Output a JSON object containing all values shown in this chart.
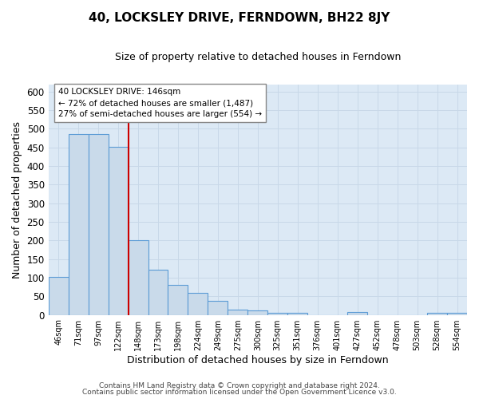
{
  "title": "40, LOCKSLEY DRIVE, FERNDOWN, BH22 8JY",
  "subtitle": "Size of property relative to detached houses in Ferndown",
  "xlabel": "Distribution of detached houses by size in Ferndown",
  "ylabel": "Number of detached properties",
  "footer_line1": "Contains HM Land Registry data © Crown copyright and database right 2024.",
  "footer_line2": "Contains public sector information licensed under the Open Government Licence v3.0.",
  "categories": [
    "46sqm",
    "71sqm",
    "97sqm",
    "122sqm",
    "148sqm",
    "173sqm",
    "198sqm",
    "224sqm",
    "249sqm",
    "275sqm",
    "300sqm",
    "325sqm",
    "351sqm",
    "376sqm",
    "401sqm",
    "427sqm",
    "452sqm",
    "478sqm",
    "503sqm",
    "528sqm",
    "554sqm"
  ],
  "bar_heights": [
    103,
    487,
    487,
    452,
    200,
    122,
    81,
    59,
    37,
    15,
    12,
    5,
    5,
    0,
    0,
    8,
    0,
    0,
    0,
    5,
    5
  ],
  "bar_color": "#c9daea",
  "bar_edge_color": "#5b9bd5",
  "ylim": [
    0,
    620
  ],
  "yticks": [
    0,
    50,
    100,
    150,
    200,
    250,
    300,
    350,
    400,
    450,
    500,
    550,
    600
  ],
  "vline_color": "#cc0000",
  "annotation_title": "40 LOCKSLEY DRIVE: 146sqm",
  "annotation_line1": "← 72% of detached houses are smaller (1,487)",
  "annotation_line2": "27% of semi-detached houses are larger (554) →",
  "grid_color": "#c8d8e8",
  "plot_bg_color": "#dce9f5",
  "fig_bg_color": "#ffffff"
}
